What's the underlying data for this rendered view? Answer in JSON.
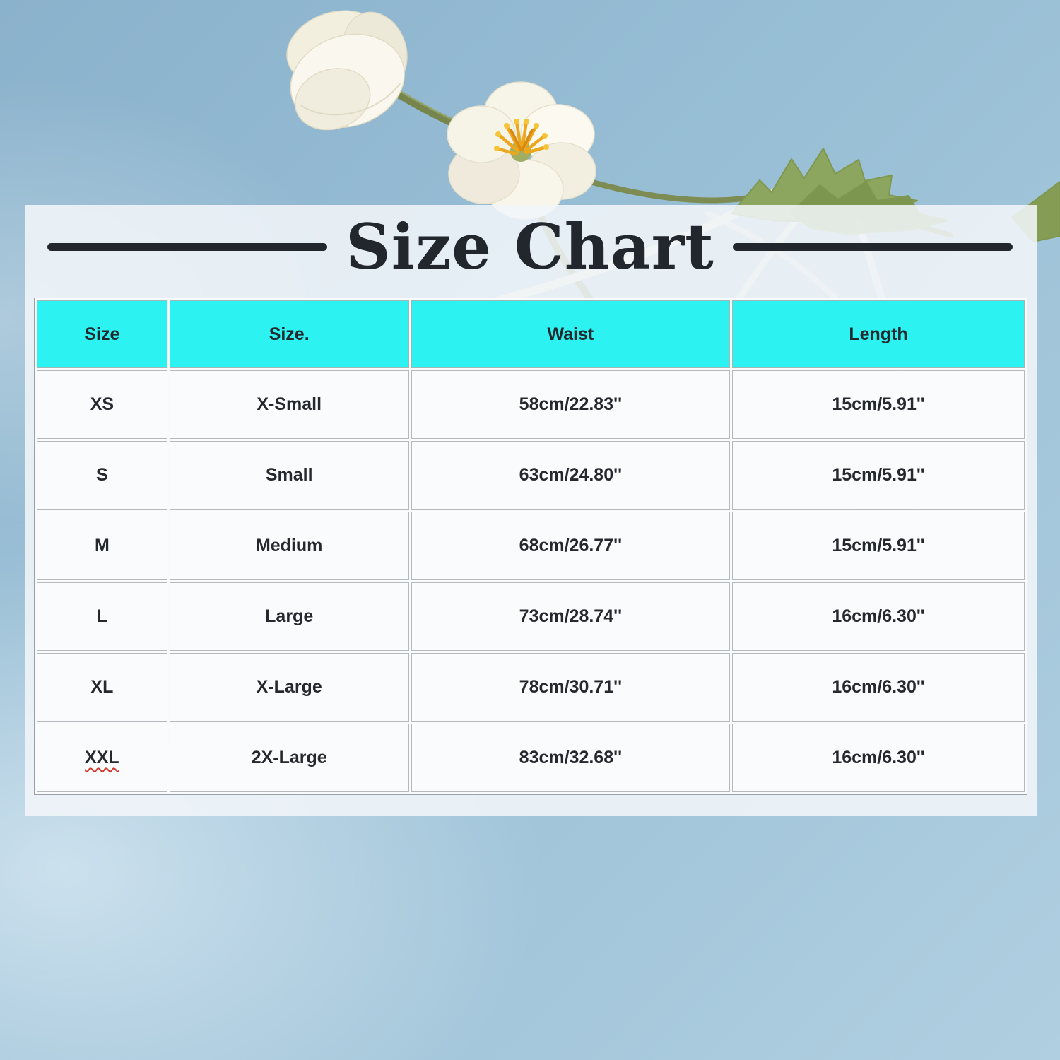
{
  "size_chart": {
    "title": "Size Chart",
    "columns": [
      "Size",
      "Size.",
      "Waist",
      "Length"
    ],
    "rows": [
      {
        "size": "XS",
        "size_label": "X-Small",
        "waist": "58cm/22.83''",
        "length": "15cm/5.91''"
      },
      {
        "size": "S",
        "size_label": "Small",
        "waist": "63cm/24.80''",
        "length": "15cm/5.91''"
      },
      {
        "size": "M",
        "size_label": "Medium",
        "waist": "68cm/26.77''",
        "length": "15cm/5.91''"
      },
      {
        "size": "L",
        "size_label": "Large",
        "waist": "73cm/28.74''",
        "length": "16cm/6.30''"
      },
      {
        "size": "XL",
        "size_label": "X-Large",
        "waist": "78cm/30.71''",
        "length": "16cm/6.30''"
      },
      {
        "size": "XXL",
        "size_label": "2X-Large",
        "waist": "83cm/32.68''",
        "length": "16cm/6.30''"
      }
    ]
  },
  "colors": {
    "header_bg": "#2cf2f2",
    "title_color": "#22272d",
    "background_blue": "#9cc2d8",
    "panel_white": "#f2f6f9"
  },
  "decor": {
    "flowers": "white-poppy-flowers",
    "leaves": "green-fuzzy-leaves",
    "strings": "cream-lace-strings"
  }
}
